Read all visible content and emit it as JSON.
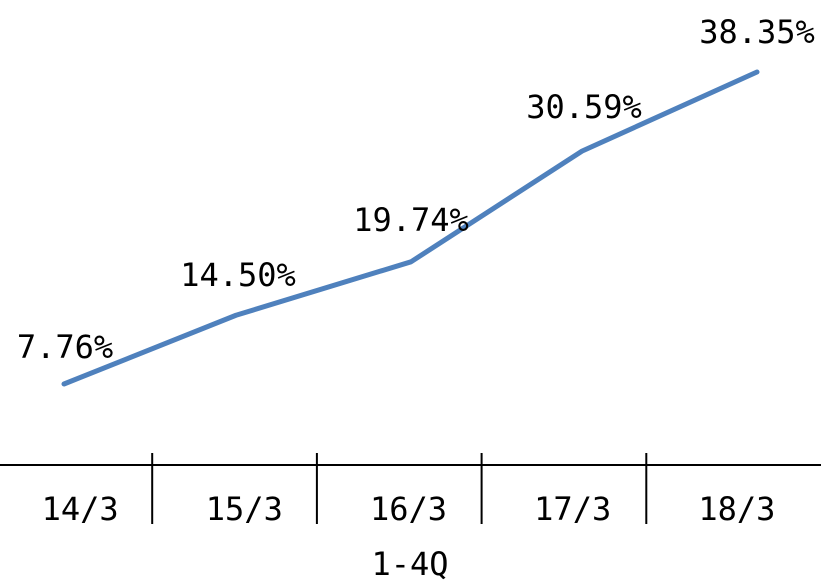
{
  "chart_data": {
    "type": "line",
    "categories": [
      "14/3",
      "15/3",
      "16/3",
      "17/3",
      "18/3"
    ],
    "group_label": "1-4Q",
    "series": [
      {
        "values": [
          7.76,
          14.5,
          19.74,
          30.59,
          38.35
        ],
        "labels": [
          "7.76%",
          "14.50%",
          "19.74%",
          "30.59%",
          "38.35%"
        ],
        "color": "#4f81bd"
      }
    ],
    "xlabel": "",
    "ylabel": "",
    "grid": false,
    "legend": "none"
  }
}
